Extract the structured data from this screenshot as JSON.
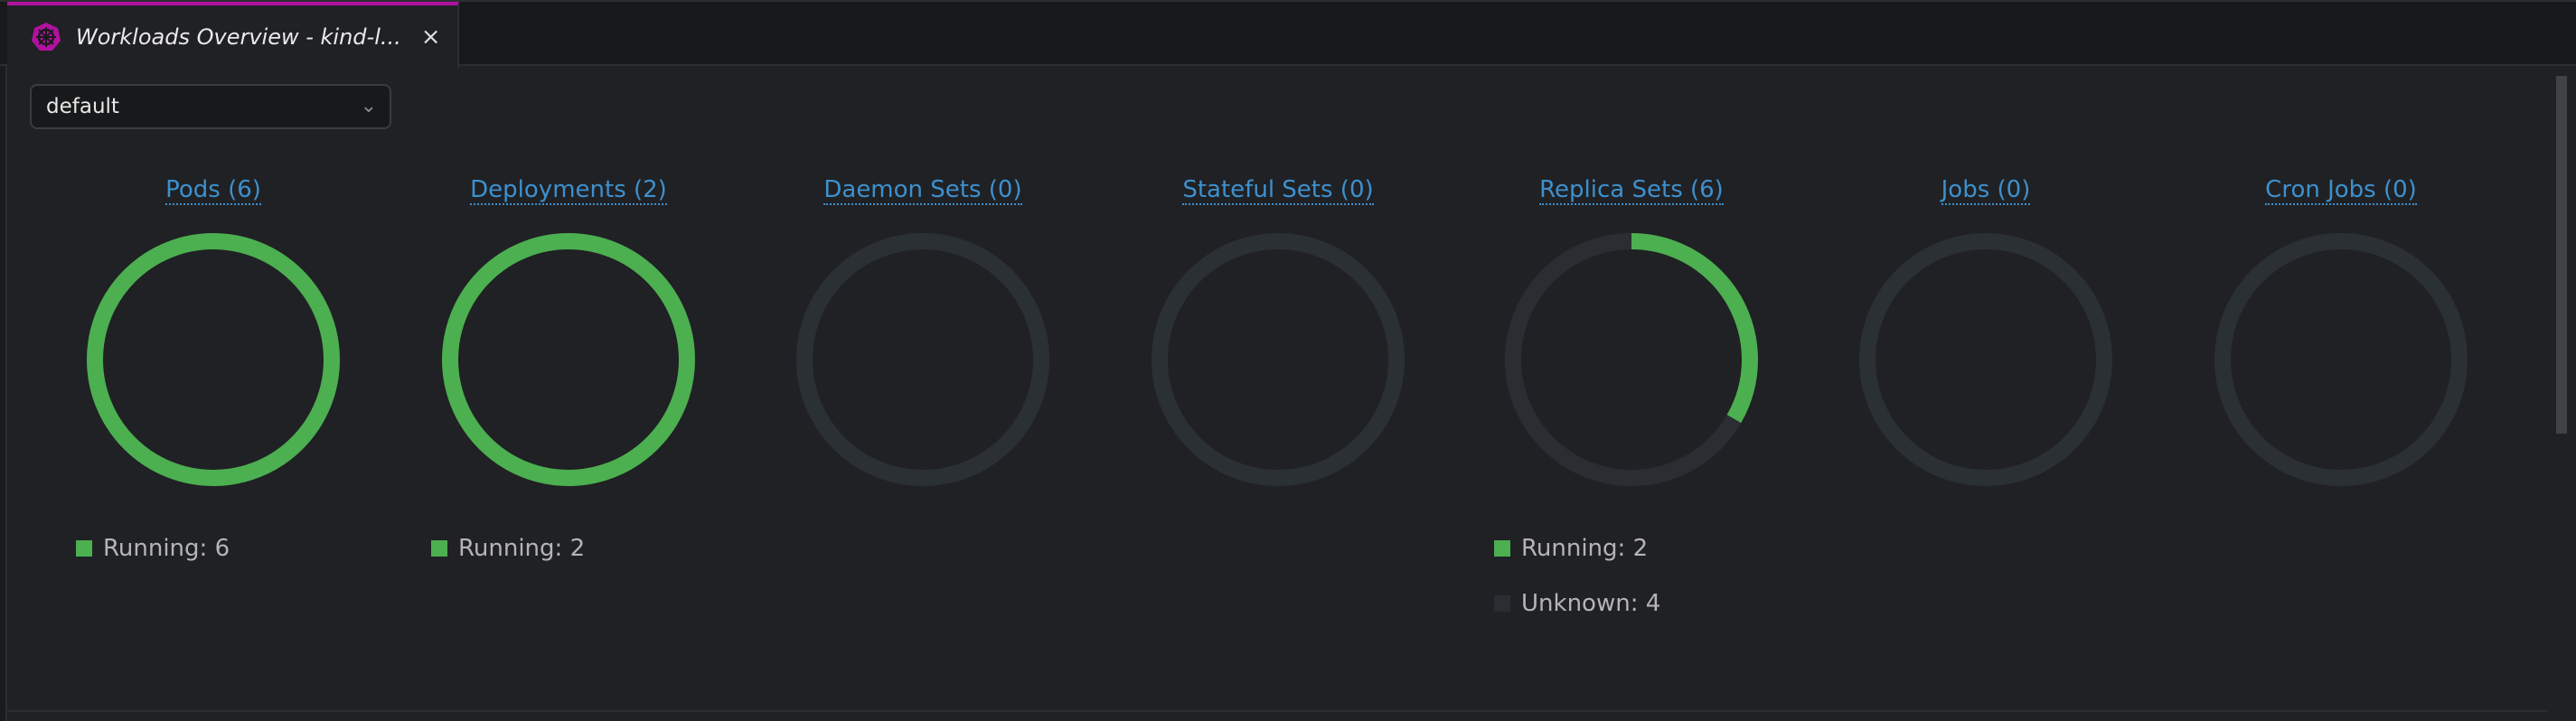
{
  "tab": {
    "title": "Workloads Overview - kind-l...",
    "close": "×",
    "icon": "kubernetes-helm-icon",
    "accent": "#b0129f"
  },
  "namespace_select": {
    "value": "default"
  },
  "colors": {
    "running": "#4caf50",
    "unknown": "#2a2d31",
    "ring_empty": "#2b3035",
    "link": "#3d90ce"
  },
  "workloads": [
    {
      "label": "Pods (6)",
      "legend": [
        {
          "text": "Running: 6",
          "status": "running",
          "count": 6
        }
      ]
    },
    {
      "label": "Deployments (2)",
      "legend": [
        {
          "text": "Running: 2",
          "status": "running",
          "count": 2
        }
      ]
    },
    {
      "label": "Daemon Sets (0)",
      "legend": []
    },
    {
      "label": "Stateful Sets (0)",
      "legend": []
    },
    {
      "label": "Replica Sets (6)",
      "legend": [
        {
          "text": "Running: 2",
          "status": "running",
          "count": 2
        },
        {
          "text": "Unknown: 4",
          "status": "unknown",
          "count": 4
        }
      ]
    },
    {
      "label": "Jobs (0)",
      "legend": []
    },
    {
      "label": "Cron Jobs (0)",
      "legend": []
    }
  ]
}
